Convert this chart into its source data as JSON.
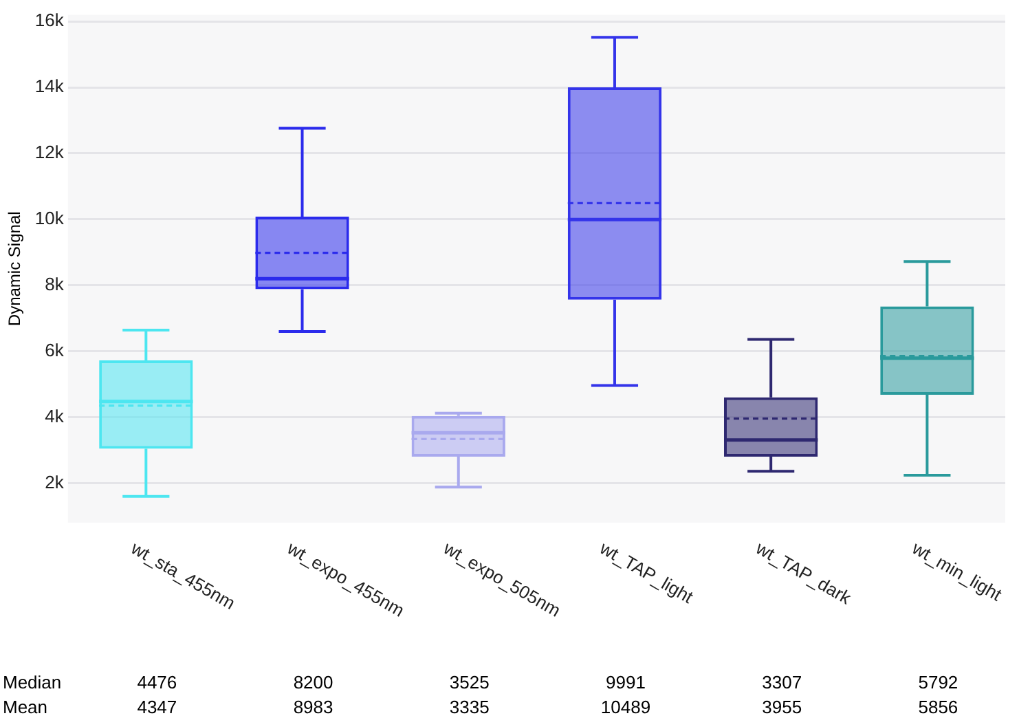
{
  "chart_data": {
    "type": "box",
    "ylabel": "Dynamic Signal",
    "categories": [
      "wt_sta_455nm",
      "wt_expo_455nm",
      "wt_expo_505nm",
      "wt_TAP_light",
      "wt_TAP_dark",
      "wt_min_light"
    ],
    "colors": [
      "#4de6f0",
      "#2b2bec",
      "#a9a9ee",
      "#3434ea",
      "#2e2870",
      "#2a9a9c"
    ],
    "boxes": [
      {
        "low": 1600,
        "q1": 3040,
        "median": 4476,
        "q3": 5720,
        "high": 6640,
        "mean": 4347
      },
      {
        "low": 6600,
        "q1": 7880,
        "median": 8200,
        "q3": 10080,
        "high": 12760,
        "mean": 8983
      },
      {
        "low": 1880,
        "q1": 2800,
        "median": 3525,
        "q3": 4040,
        "high": 4120,
        "mean": 3335
      },
      {
        "low": 4960,
        "q1": 7560,
        "median": 9991,
        "q3": 14000,
        "high": 15520,
        "mean": 10489
      },
      {
        "low": 2360,
        "q1": 2800,
        "median": 3307,
        "q3": 4600,
        "high": 6360,
        "mean": 3955
      },
      {
        "low": 2240,
        "q1": 4680,
        "median": 5792,
        "q3": 7360,
        "high": 8720,
        "mean": 5856
      }
    ],
    "annotations": [
      "Median",
      "4476",
      "8200",
      "3525",
      "9991",
      "3307",
      "5792",
      "Mean",
      "4347",
      "8983",
      "3335",
      "10489",
      "3955",
      "5856"
    ],
    "ylim": [
      800,
      16200
    ],
    "yticks": [
      {
        "value": 2000,
        "label": "2k"
      },
      {
        "value": 4000,
        "label": "4k"
      },
      {
        "value": 6000,
        "label": "6k"
      },
      {
        "value": 8000,
        "label": "8k"
      },
      {
        "value": 10000,
        "label": "10k"
      },
      {
        "value": 12000,
        "label": "12k"
      },
      {
        "value": 14000,
        "label": "14k"
      },
      {
        "value": 16000,
        "label": "16k"
      }
    ],
    "grid": "y",
    "legend": false
  }
}
